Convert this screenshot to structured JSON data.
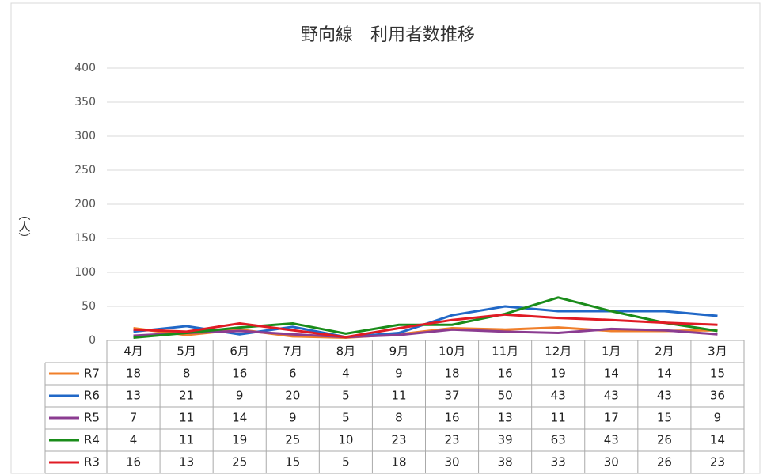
{
  "chart_data": {
    "type": "line",
    "title": "野向線　利用者数推移",
    "y_label": "（人）",
    "categories": [
      "4月",
      "5月",
      "6月",
      "7月",
      "8月",
      "9月",
      "10月",
      "11月",
      "12月",
      "1月",
      "2月",
      "3月"
    ],
    "series": [
      {
        "name": "R7",
        "color": "#f07f2a",
        "values": [
          18,
          8,
          16,
          6,
          4,
          9,
          18,
          16,
          19,
          14,
          14,
          15
        ]
      },
      {
        "name": "R6",
        "color": "#2168c7",
        "values": [
          13,
          21,
          9,
          20,
          5,
          11,
          37,
          50,
          43,
          43,
          43,
          36
        ]
      },
      {
        "name": "R5",
        "color": "#8b3c91",
        "values": [
          7,
          11,
          14,
          9,
          5,
          8,
          16,
          13,
          11,
          17,
          15,
          9
        ]
      },
      {
        "name": "R4",
        "color": "#1a8c1a",
        "values": [
          4,
          11,
          19,
          25,
          10,
          23,
          23,
          39,
          63,
          43,
          26,
          14
        ]
      },
      {
        "name": "R3",
        "color": "#e01b24",
        "values": [
          16,
          13,
          25,
          15,
          5,
          18,
          30,
          38,
          33,
          30,
          26,
          23
        ]
      }
    ],
    "ylim": [
      0,
      400
    ],
    "yticks": [
      0,
      50,
      100,
      150,
      200,
      250,
      300,
      350,
      400
    ],
    "grid": true
  }
}
